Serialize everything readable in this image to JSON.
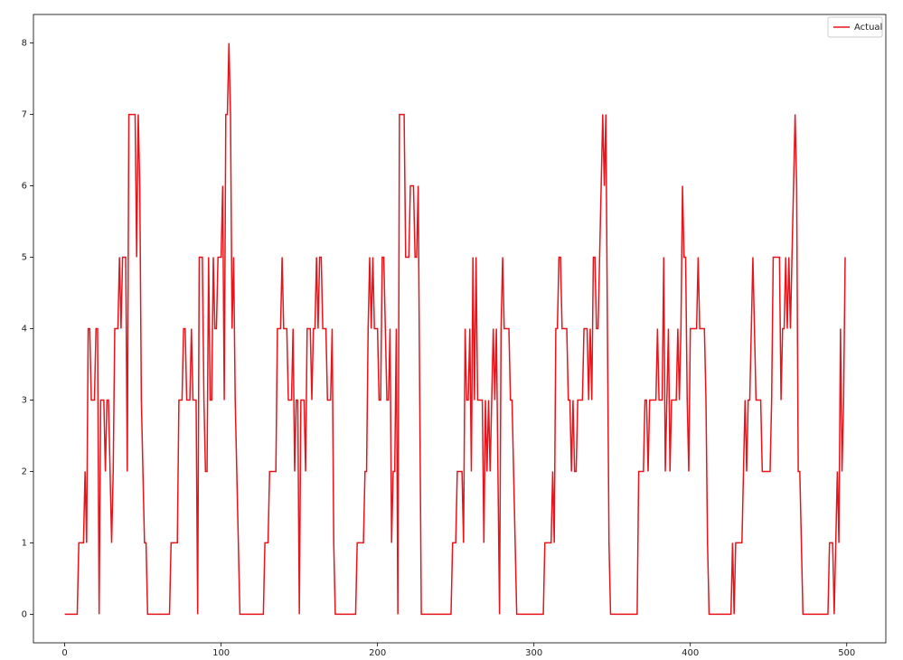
{
  "chart_data": {
    "type": "line",
    "series": [
      {
        "name": "Actual",
        "color": "#e8141b",
        "values": [
          0,
          0,
          0,
          0,
          0,
          0,
          0,
          0,
          0,
          1,
          1,
          1,
          1,
          2,
          1,
          4,
          4,
          3,
          3,
          3,
          4,
          4,
          0,
          3,
          3,
          3,
          2,
          3,
          3,
          2,
          1,
          2,
          4,
          4,
          4,
          5,
          4,
          5,
          5,
          5,
          2,
          7,
          7,
          7,
          7,
          7,
          5,
          7,
          6,
          3,
          2,
          1,
          1,
          0,
          0,
          0,
          0,
          0,
          0,
          0,
          0,
          0,
          0,
          0,
          0,
          0,
          0,
          0,
          1,
          1,
          1,
          1,
          1,
          3,
          3,
          3,
          4,
          4,
          3,
          3,
          3,
          4,
          3,
          3,
          3,
          0,
          5,
          5,
          5,
          3,
          2,
          2,
          5,
          3,
          3,
          5,
          4,
          4,
          5,
          5,
          5,
          6,
          3,
          7,
          7,
          8,
          7,
          4,
          5,
          3,
          2,
          1,
          0,
          0,
          0,
          0,
          0,
          0,
          0,
          0,
          0,
          0,
          0,
          0,
          0,
          0,
          0,
          0,
          1,
          1,
          1,
          2,
          2,
          2,
          2,
          2,
          4,
          4,
          4,
          5,
          4,
          4,
          4,
          3,
          3,
          3,
          4,
          2,
          3,
          3,
          0,
          3,
          3,
          3,
          2,
          4,
          4,
          4,
          3,
          4,
          4,
          5,
          4,
          5,
          5,
          4,
          4,
          4,
          3,
          3,
          3,
          4,
          1,
          0,
          0,
          0,
          0,
          0,
          0,
          0,
          0,
          0,
          0,
          0,
          0,
          0,
          0,
          1,
          1,
          1,
          1,
          1,
          2,
          2,
          4,
          5,
          4,
          5,
          4,
          4,
          4,
          3,
          3,
          5,
          5,
          4,
          3,
          3,
          4,
          1,
          2,
          2,
          4,
          0,
          7,
          7,
          7,
          7,
          5,
          5,
          5,
          6,
          6,
          6,
          5,
          5,
          6,
          3,
          0,
          0,
          0,
          0,
          0,
          0,
          0,
          0,
          0,
          0,
          0,
          0,
          0,
          0,
          0,
          0,
          0,
          0,
          0,
          0,
          1,
          1,
          1,
          2,
          2,
          2,
          2,
          1,
          4,
          3,
          3,
          4,
          2,
          5,
          3,
          5,
          3,
          3,
          3,
          3,
          1,
          3,
          2,
          3,
          2,
          3,
          4,
          3,
          4,
          2,
          0,
          4,
          5,
          4,
          4,
          4,
          4,
          3,
          3,
          2,
          1,
          0,
          0,
          0,
          0,
          0,
          0,
          0,
          0,
          0,
          0,
          0,
          0,
          0,
          0,
          0,
          0,
          0,
          0,
          1,
          1,
          1,
          1,
          1,
          2,
          1,
          4,
          4,
          5,
          5,
          4,
          4,
          4,
          4,
          3,
          3,
          2,
          3,
          2,
          2,
          3,
          3,
          3,
          3,
          4,
          4,
          4,
          3,
          4,
          3,
          5,
          5,
          4,
          4,
          5,
          6,
          7,
          6,
          7,
          4,
          1,
          0,
          0,
          0,
          0,
          0,
          0,
          0,
          0,
          0,
          0,
          0,
          0,
          0,
          0,
          0,
          0,
          0,
          0,
          2,
          2,
          2,
          2,
          3,
          3,
          2,
          3,
          3,
          3,
          3,
          3,
          4,
          3,
          3,
          3,
          5,
          2,
          3,
          4,
          2,
          3,
          3,
          3,
          3,
          4,
          3,
          4,
          6,
          5,
          5,
          3,
          2,
          4,
          4,
          4,
          4,
          4,
          5,
          4,
          4,
          4,
          4,
          3,
          1,
          0,
          0,
          0,
          0,
          0,
          0,
          0,
          0,
          0,
          0,
          0,
          0,
          0,
          0,
          0,
          1,
          0,
          1,
          1,
          1,
          1,
          1,
          2,
          3,
          2,
          3,
          3,
          4,
          5,
          4,
          3,
          3,
          3,
          3,
          2,
          2,
          2,
          2,
          2,
          2,
          3,
          5,
          5,
          5,
          5,
          5,
          3,
          4,
          4,
          5,
          4,
          5,
          4,
          5,
          6,
          7,
          6,
          2,
          2,
          1,
          0,
          0,
          0,
          0,
          0,
          0,
          0,
          0,
          0,
          0,
          0,
          0,
          0,
          0,
          0,
          0,
          0,
          1,
          1,
          1,
          0,
          1,
          2,
          1,
          4,
          2,
          3,
          5
        ]
      }
    ],
    "xlim": [
      -20,
      525
    ],
    "ylim": [
      -0.4,
      8.4
    ],
    "xticks": [
      0,
      100,
      200,
      300,
      400,
      500
    ],
    "yticks": [
      0,
      1,
      2,
      3,
      4,
      5,
      6,
      7,
      8
    ],
    "legend": "upper right"
  }
}
